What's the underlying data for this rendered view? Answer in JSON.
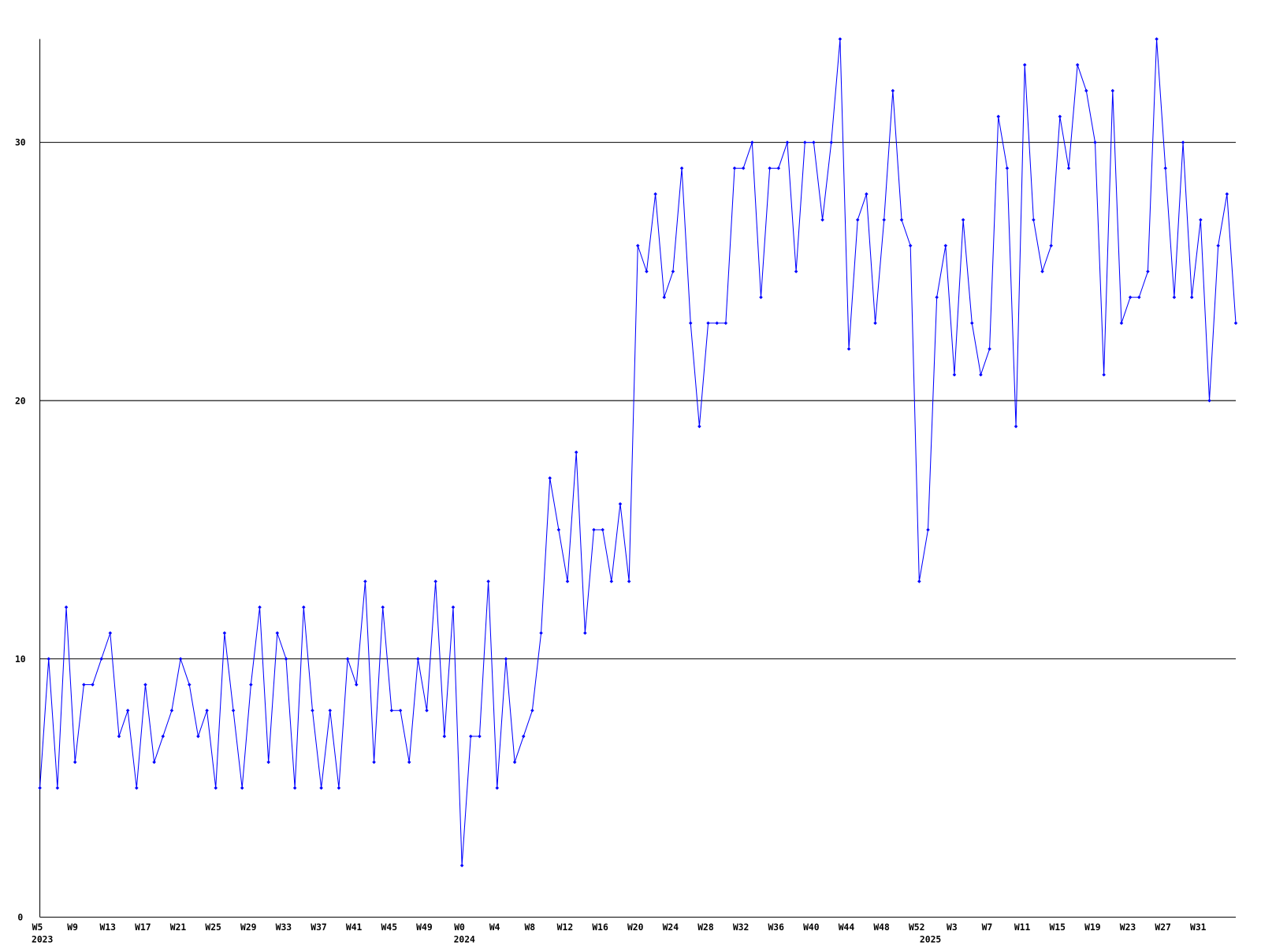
{
  "chart_data": {
    "type": "line",
    "categories": [
      "W5",
      null,
      null,
      null,
      "W9",
      null,
      null,
      null,
      "W13",
      null,
      null,
      null,
      "W17",
      null,
      null,
      null,
      "W21",
      null,
      null,
      null,
      "W25",
      null,
      null,
      null,
      "W29",
      null,
      null,
      null,
      "W33",
      null,
      null,
      null,
      "W37",
      null,
      null,
      null,
      "W41",
      null,
      null,
      null,
      "W45",
      null,
      null,
      null,
      "W49",
      null,
      null,
      null,
      "W0",
      null,
      null,
      null,
      "W4",
      null,
      null,
      null,
      "W8",
      null,
      null,
      null,
      "W12",
      null,
      null,
      null,
      "W16",
      null,
      null,
      null,
      "W20",
      null,
      null,
      null,
      "W24",
      null,
      null,
      null,
      "W28",
      null,
      null,
      null,
      "W32",
      null,
      null,
      null,
      "W36",
      null,
      null,
      null,
      "W40",
      null,
      null,
      null,
      "W44",
      null,
      null,
      null,
      "W48",
      null,
      null,
      null,
      "W52",
      null,
      null,
      null,
      "W3",
      null,
      null,
      null,
      "W7",
      null,
      null,
      null,
      "W11",
      null,
      null,
      null,
      "W15",
      null,
      null,
      null,
      "W19",
      null,
      null,
      null,
      "W23",
      null,
      null,
      null,
      "W27",
      null,
      null,
      null,
      "W31",
      null,
      null,
      null,
      null
    ],
    "year_labels": [
      "2023",
      null,
      null,
      null,
      null,
      null,
      null,
      null,
      null,
      null,
      null,
      null,
      null,
      null,
      null,
      null,
      null,
      null,
      null,
      null,
      null,
      null,
      null,
      null,
      null,
      null,
      null,
      null,
      null,
      null,
      null,
      null,
      null,
      null,
      null,
      null,
      null,
      null,
      null,
      null,
      null,
      null,
      null,
      null,
      null,
      null,
      null,
      null,
      "2024",
      null,
      null,
      null,
      null,
      null,
      null,
      null,
      null,
      null,
      null,
      null,
      null,
      null,
      null,
      null,
      null,
      null,
      null,
      null,
      null,
      null,
      null,
      null,
      null,
      null,
      null,
      null,
      null,
      null,
      null,
      null,
      null,
      null,
      null,
      null,
      null,
      null,
      null,
      null,
      null,
      null,
      null,
      null,
      null,
      null,
      null,
      null,
      null,
      null,
      null,
      null,
      null,
      "2025",
      null,
      null,
      null,
      null,
      null,
      null,
      null,
      null,
      null,
      null,
      null,
      null,
      null,
      null,
      null,
      null,
      null,
      null,
      null,
      null,
      null,
      null,
      null,
      null,
      null,
      null,
      null,
      null,
      null,
      null,
      null,
      null,
      null,
      null,
      null
    ],
    "series": [
      {
        "color": "#0000ff",
        "values": [
          5,
          10,
          5,
          12,
          6,
          9,
          9,
          10,
          11,
          7,
          8,
          5,
          9,
          6,
          7,
          8,
          10,
          9,
          7,
          8,
          5,
          11,
          8,
          5,
          9,
          12,
          6,
          11,
          10,
          5,
          12,
          8,
          5,
          8,
          5,
          10,
          9,
          13,
          6,
          12,
          8,
          8,
          6,
          10,
          8,
          13,
          7,
          12,
          2,
          7,
          7,
          13,
          5,
          10,
          6,
          7,
          8,
          11,
          17,
          15,
          13,
          18,
          11,
          15,
          15,
          13,
          16,
          13,
          26,
          25,
          28,
          24,
          25,
          29,
          23,
          19,
          23,
          23,
          23,
          29,
          29,
          30,
          24,
          29,
          29,
          30,
          25,
          30,
          30,
          27,
          30,
          34,
          22,
          27,
          28,
          23,
          27,
          32,
          27,
          26,
          13,
          15,
          24,
          26,
          21,
          27,
          23,
          21,
          22,
          31,
          29,
          19,
          33,
          27,
          25,
          26,
          31,
          29,
          33,
          32,
          30,
          21,
          32,
          23,
          24,
          24,
          25,
          34,
          29,
          24,
          30,
          24,
          27,
          20,
          26,
          28,
          23
        ]
      }
    ],
    "ylim": [
      0,
      34
    ],
    "yticks": [
      0,
      10,
      20,
      30
    ],
    "grid": true
  }
}
